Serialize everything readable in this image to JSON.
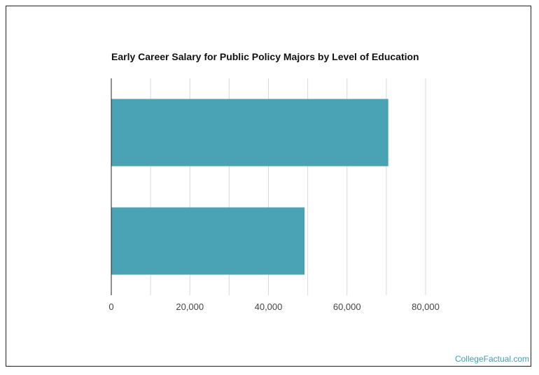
{
  "chart_data": {
    "type": "bar",
    "orientation": "horizontal",
    "title": "Early Career Salary for Public Policy Majors by Level of Education",
    "categories": [
      "",
      ""
    ],
    "values": [
      70500,
      49200
    ],
    "xlabel": "",
    "ylabel": "",
    "xlim": [
      0,
      80000
    ],
    "x_ticks": [
      "0",
      "20,000",
      "40,000",
      "60,000",
      "80,000"
    ],
    "grid": "vertical",
    "bar_color": "#4aa3b4"
  },
  "footer": {
    "credit": "CollegeFactual.com"
  }
}
